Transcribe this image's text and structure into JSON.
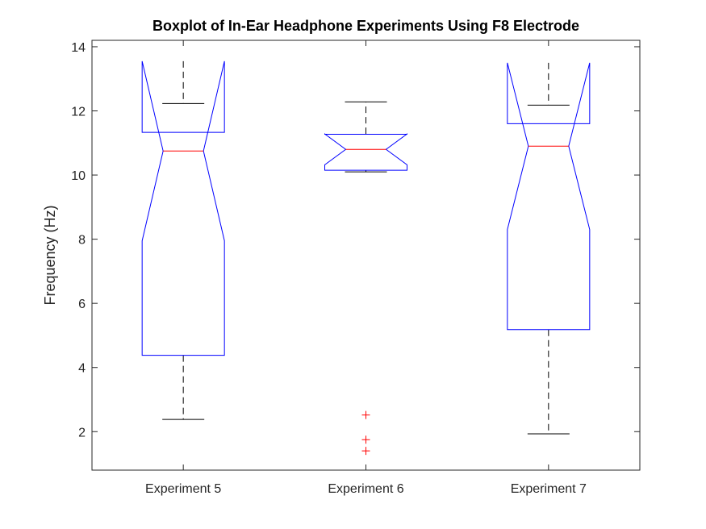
{
  "chart_data": {
    "type": "boxplot",
    "title": "Boxplot of In-Ear Headphone Experiments Using F8 Electrode",
    "xlabel": "",
    "ylabel": "Frequency (Hz)",
    "ylim": [
      0.8,
      14.2
    ],
    "yticks": [
      2,
      4,
      6,
      8,
      10,
      12,
      14
    ],
    "notched": true,
    "grid": false,
    "categories": [
      "Experiment 5",
      "Experiment 6",
      "Experiment 7"
    ],
    "boxes": [
      {
        "category": "Experiment 5",
        "lower_whisker": 2.38,
        "q1": 4.38,
        "median": 10.75,
        "q3": 11.33,
        "upper_whisker": 12.23,
        "notch_low": 7.95,
        "notch_high": 13.55,
        "outliers": []
      },
      {
        "category": "Experiment 6",
        "lower_whisker": 10.1,
        "q1": 10.15,
        "median": 10.8,
        "q3": 11.27,
        "upper_whisker": 12.28,
        "notch_low": 10.32,
        "notch_high": 11.28,
        "outliers": [
          2.52,
          1.75,
          1.4
        ]
      },
      {
        "category": "Experiment 7",
        "lower_whisker": 1.93,
        "q1": 5.18,
        "median": 10.9,
        "q3": 11.6,
        "upper_whisker": 12.18,
        "notch_low": 8.3,
        "notch_high": 13.5,
        "outliers": []
      }
    ],
    "colors": {
      "box": "#0000ff",
      "median": "#ff0000",
      "whisker": "#000000",
      "outlier": "#ff0000",
      "axes": "#262626"
    }
  }
}
